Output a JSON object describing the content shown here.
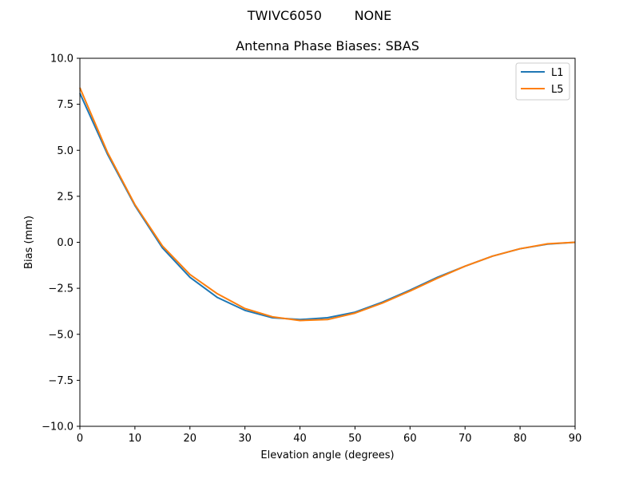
{
  "figure": {
    "suptitle": "TWIVC6050        NONE",
    "title": "Antenna Phase Biases: SBAS"
  },
  "colors": {
    "L1": "#1f77b4",
    "L5": "#ff7f0e"
  },
  "chart_data": {
    "type": "line",
    "title": "Antenna Phase Biases: SBAS",
    "suptitle": "TWIVC6050        NONE",
    "xlabel": "Elevation angle (degrees)",
    "ylabel": "Bias (mm)",
    "xlim": [
      0,
      90
    ],
    "ylim": [
      -10.0,
      10.0
    ],
    "xticks": [
      0,
      10,
      20,
      30,
      40,
      50,
      60,
      70,
      80,
      90
    ],
    "yticks": [
      -10.0,
      -7.5,
      -5.0,
      -2.5,
      0.0,
      2.5,
      5.0,
      7.5,
      10.0
    ],
    "xtick_labels": [
      "0",
      "10",
      "20",
      "30",
      "40",
      "50",
      "60",
      "70",
      "80",
      "90"
    ],
    "ytick_labels": [
      "−10.0",
      "−7.5",
      "−5.0",
      "−2.5",
      "0.0",
      "2.5",
      "5.0",
      "7.5",
      "10.0"
    ],
    "grid": false,
    "legend_position": "upper right",
    "x": [
      0,
      5,
      10,
      15,
      20,
      25,
      30,
      35,
      40,
      45,
      50,
      55,
      60,
      65,
      70,
      75,
      80,
      85,
      90
    ],
    "series": [
      {
        "name": "L1",
        "color": "#1f77b4",
        "values": [
          8.1,
          4.8,
          2.0,
          -0.3,
          -1.9,
          -3.0,
          -3.7,
          -4.1,
          -4.2,
          -4.1,
          -3.8,
          -3.25,
          -2.6,
          -1.9,
          -1.3,
          -0.75,
          -0.35,
          -0.1,
          0.0
        ]
      },
      {
        "name": "L5",
        "color": "#ff7f0e",
        "values": [
          8.4,
          4.9,
          2.05,
          -0.2,
          -1.75,
          -2.8,
          -3.6,
          -4.05,
          -4.25,
          -4.2,
          -3.85,
          -3.3,
          -2.65,
          -1.95,
          -1.3,
          -0.75,
          -0.35,
          -0.08,
          0.0
        ]
      }
    ]
  }
}
